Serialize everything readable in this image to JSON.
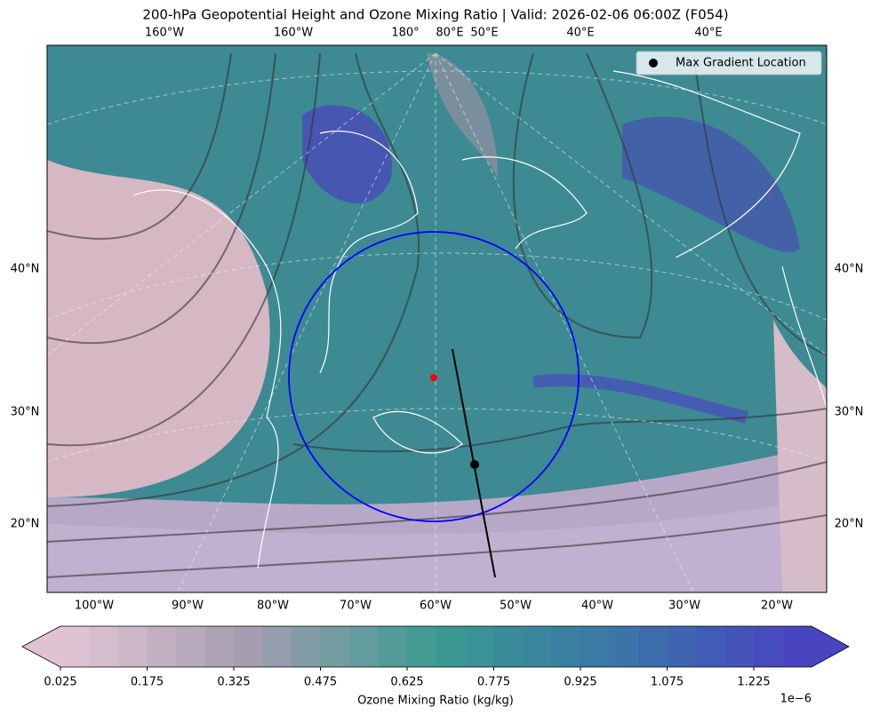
{
  "title": "200-hPa Geopotential Height and Ozone Mixing Ratio   |  Valid: 2026-02-06 06:00Z (F054)",
  "map": {
    "top_labels": [
      "160°W",
      "160°W",
      "180°",
      "80°E",
      "50°E",
      "40°E",
      "40°E"
    ],
    "left_labels": [
      "40°N",
      "30°N",
      "20°N"
    ],
    "right_labels": [
      "40°N",
      "30°N",
      "20°N"
    ],
    "bottom_labels": [
      "100°W",
      "90°W",
      "80°W",
      "70°W",
      "60°W",
      "50°W",
      "40°W",
      "30°W",
      "20°W"
    ]
  },
  "legend": {
    "label": "Max Gradient Location"
  },
  "colorbar": {
    "label": "Ozone Mixing Ratio (kg/kg)",
    "exponent_label": "1e−6",
    "lim": [
      0.025,
      1.325
    ],
    "ticks": [
      0.025,
      0.175,
      0.325,
      0.475,
      0.625,
      0.775,
      0.925,
      1.075,
      1.225
    ],
    "bounds": [
      0.025,
      0.075,
      0.125,
      0.175,
      0.225,
      0.275,
      0.325,
      0.375,
      0.425,
      0.475,
      0.525,
      0.575,
      0.625,
      0.675,
      0.725,
      0.775,
      0.825,
      0.875,
      0.925,
      0.975,
      1.025,
      1.075,
      1.125,
      1.175,
      1.225,
      1.275,
      1.325
    ],
    "colors": [
      "#e4c6d6",
      "#a49eb0",
      "#3a9a90",
      "#3a74a8",
      "#4a40c2"
    ]
  }
}
